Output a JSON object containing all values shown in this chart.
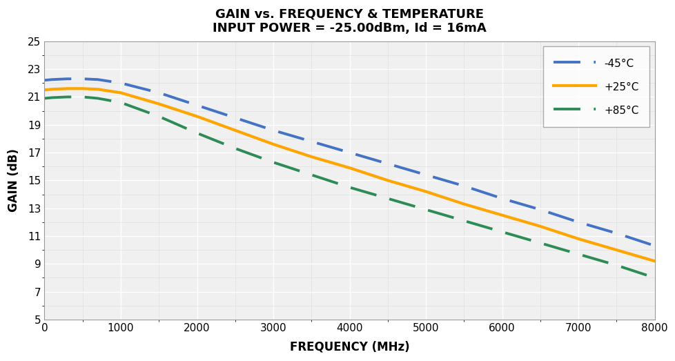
{
  "title_line1": "GAIN vs. FREQUENCY & TEMPERATURE",
  "title_line2": "INPUT POWER = -25.00dBm, Id = 16mA",
  "xlabel": "FREQUENCY (MHz)",
  "ylabel": "GAIN (dB)",
  "xlim": [
    0,
    8000
  ],
  "ylim": [
    5,
    25
  ],
  "xticks": [
    0,
    1000,
    2000,
    3000,
    4000,
    5000,
    6000,
    7000,
    8000
  ],
  "yticks": [
    5,
    7,
    9,
    11,
    13,
    15,
    17,
    19,
    21,
    23,
    25
  ],
  "series": [
    {
      "label": "-45°C",
      "color": "#4472C4",
      "linestyle": "dashed",
      "linewidth": 2.8,
      "x": [
        0,
        100,
        300,
        500,
        700,
        1000,
        1500,
        2000,
        2500,
        3000,
        3500,
        4000,
        4500,
        5000,
        5500,
        6000,
        6500,
        7000,
        7500,
        8000
      ],
      "y": [
        22.2,
        22.25,
        22.3,
        22.3,
        22.25,
        22.0,
        21.3,
        20.4,
        19.5,
        18.6,
        17.8,
        17.0,
        16.2,
        15.4,
        14.6,
        13.7,
        12.9,
        12.0,
        11.2,
        10.3
      ]
    },
    {
      "label": "+25°C",
      "color": "#FFA500",
      "linestyle": "solid",
      "linewidth": 3.0,
      "x": [
        0,
        100,
        300,
        500,
        700,
        1000,
        1500,
        2000,
        2500,
        3000,
        3500,
        4000,
        4500,
        5000,
        5500,
        6000,
        6500,
        7000,
        7500,
        8000
      ],
      "y": [
        21.5,
        21.55,
        21.6,
        21.6,
        21.55,
        21.3,
        20.5,
        19.6,
        18.6,
        17.6,
        16.7,
        15.9,
        15.0,
        14.2,
        13.3,
        12.5,
        11.7,
        10.8,
        10.0,
        9.2
      ]
    },
    {
      "label": "+85°C",
      "color": "#2E8B57",
      "linestyle": "dashed",
      "linewidth": 2.8,
      "x": [
        0,
        100,
        300,
        500,
        700,
        1000,
        1500,
        2000,
        2500,
        3000,
        3500,
        4000,
        4500,
        5000,
        5500,
        6000,
        6500,
        7000,
        7500,
        8000
      ],
      "y": [
        20.9,
        20.95,
        21.0,
        21.0,
        20.9,
        20.6,
        19.6,
        18.4,
        17.3,
        16.3,
        15.4,
        14.5,
        13.7,
        12.9,
        12.1,
        11.3,
        10.5,
        9.7,
        8.9,
        8.0
      ]
    }
  ],
  "background_color": "#ffffff",
  "plot_bg_color": "#f0f0f0",
  "grid_color": "#ffffff",
  "minor_grid_color": "#e0e0e0",
  "title_fontsize": 13,
  "axis_label_fontsize": 12,
  "tick_fontsize": 11,
  "legend_fontsize": 11
}
